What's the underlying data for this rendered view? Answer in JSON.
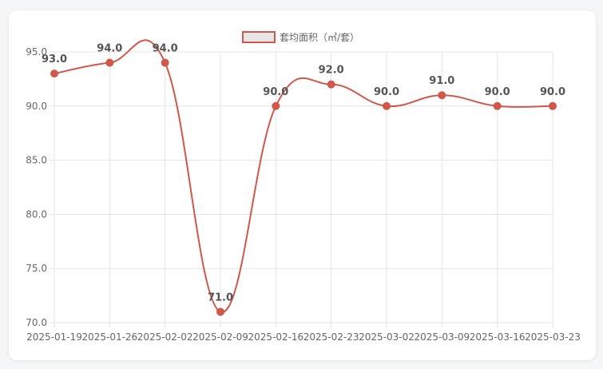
{
  "chart_data": {
    "type": "line",
    "x": [
      "2025-01-19",
      "2025-01-26",
      "2025-02-02",
      "2025-02-09",
      "2025-02-16",
      "2025-02-23",
      "2025-03-02",
      "2025-03-09",
      "2025-03-16",
      "2025-03-23"
    ],
    "series": [
      {
        "name": "套均面积（㎡/套）",
        "values": [
          93.0,
          94.0,
          94.0,
          71.0,
          90.0,
          92.0,
          90.0,
          91.0,
          90.0,
          90.0
        ],
        "data_labels": [
          "93.0",
          "94.0",
          "94.0",
          "71.0",
          "90.0",
          "92.0",
          "90.0",
          "91.0",
          "90.0",
          "90.0"
        ]
      }
    ],
    "yticks": [
      "70.0",
      "75.0",
      "80.0",
      "85.0",
      "90.0",
      "95.0"
    ],
    "ylim": [
      70,
      95
    ],
    "grid": true,
    "legend_position": "top-center",
    "title": "",
    "xlabel": "",
    "ylabel": "",
    "colors": {
      "line": "#d0574a",
      "point": "#d0574a",
      "legend_fill": "#e6e6e6",
      "grid": "#e5e5e5",
      "axis_text": "#666666",
      "label_text": "#555555"
    }
  }
}
